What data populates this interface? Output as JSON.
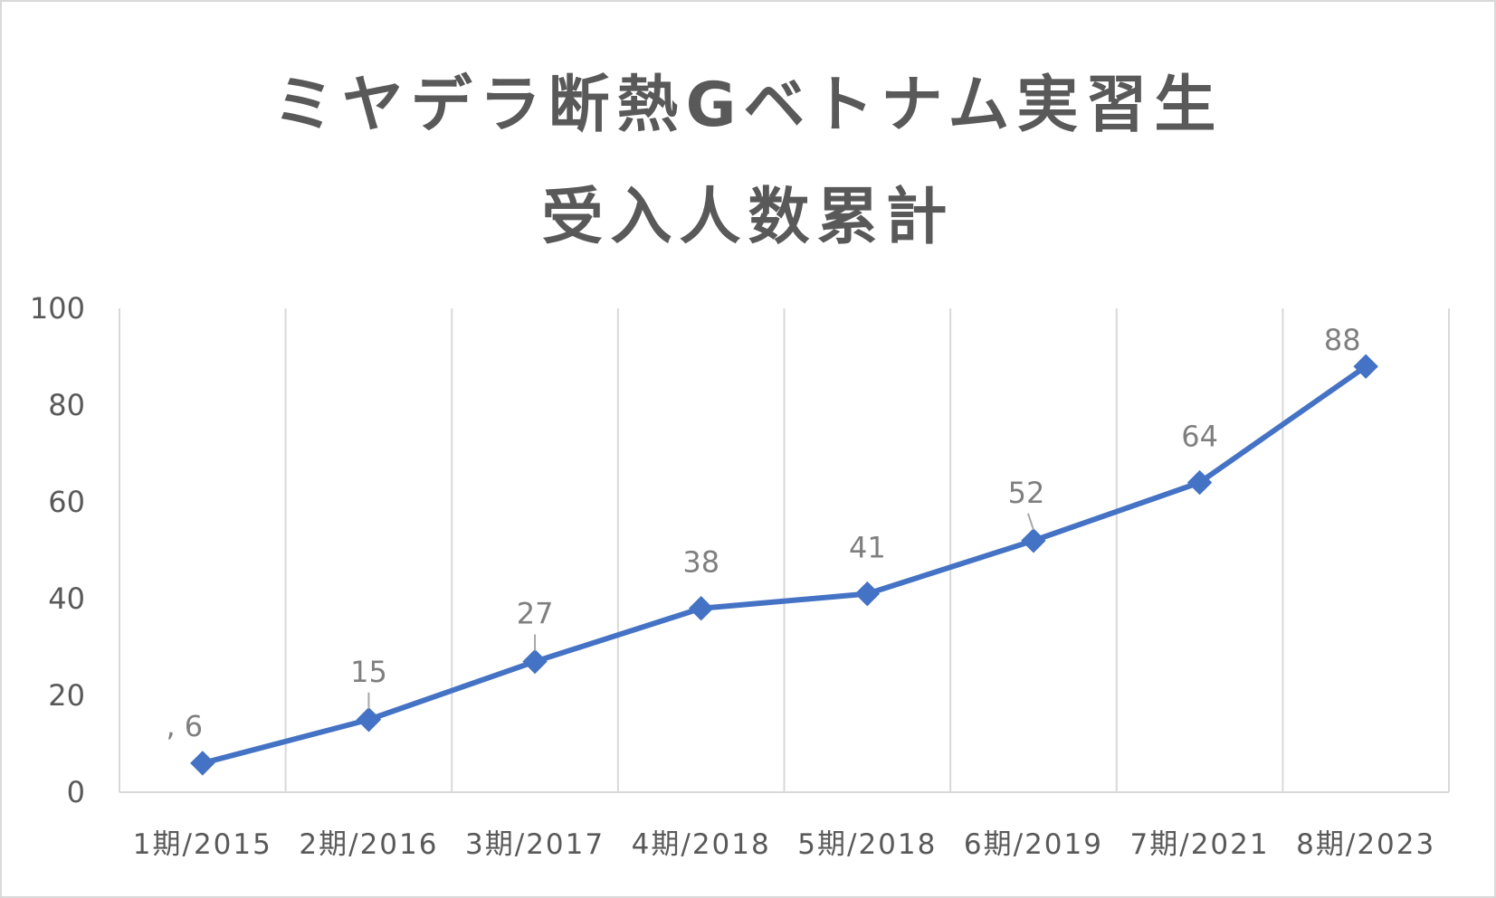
{
  "chart_data": {
    "type": "line",
    "title_lines": [
      "ミヤデラ断熱Gベトナム実習生",
      "受入人数累計"
    ],
    "categories": [
      "1期/2015",
      "2期/2016",
      "3期/2017",
      "4期/2018",
      "5期/2018",
      "6期/2019",
      "7期/2021",
      "8期/2023"
    ],
    "series": [
      {
        "values": [
          6,
          15,
          27,
          38,
          41,
          52,
          64,
          88
        ],
        "data_labels": [
          ", 6",
          "15",
          "27",
          "38",
          "41",
          "52",
          "64",
          "88"
        ],
        "color": "#4472c4",
        "marker": "diamond"
      }
    ],
    "ylim": [
      0,
      100
    ],
    "yticks": [
      0,
      20,
      40,
      60,
      80,
      100
    ],
    "grid": "vertical",
    "gridline_color": "#d9d9d9",
    "axis_text_color": "#595959",
    "data_label_color": "#7f7f7f"
  }
}
